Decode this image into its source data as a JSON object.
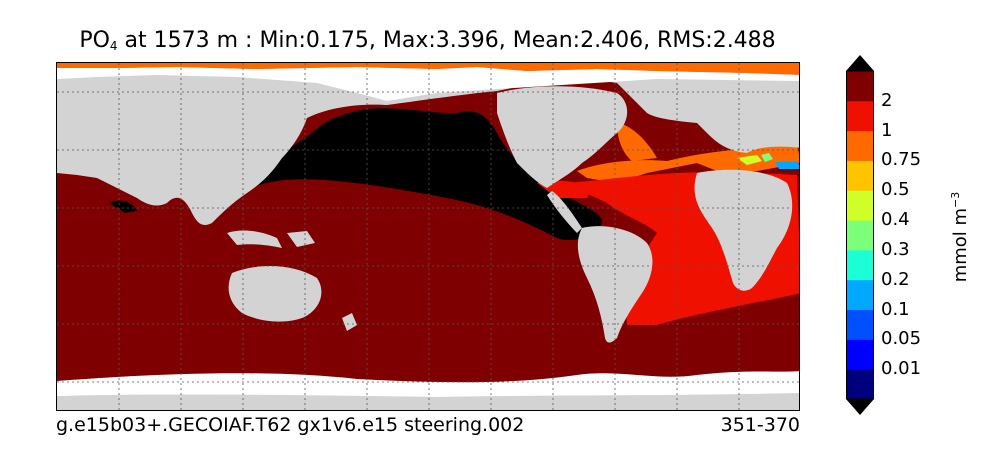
{
  "title": {
    "variable": "PO",
    "subscript": "4",
    "rest": " at 1573 m : Min:0.175, Max:3.396, Mean:2.406, RMS:2.488"
  },
  "footer": {
    "case_name": "g.e15b03+.GECOIAF.T62 gx1v6.e15 steering.002",
    "years": "351-370"
  },
  "colorbar": {
    "units_base": "mmol m",
    "units_exp": "−3",
    "labels": [
      "2",
      "1",
      "0.75",
      "0.5",
      "0.4",
      "0.3",
      "0.2",
      "0.1",
      "0.05",
      "0.01"
    ],
    "colors": [
      "#00007f",
      "#0000ff",
      "#0050ff",
      "#00a8ff",
      "#1affd5",
      "#7cff79",
      "#cfff27",
      "#ffc400",
      "#ff6a00",
      "#f01000",
      "#7f0000"
    ],
    "land_color": "#d3d3d3",
    "missing_color": "#ffffff",
    "low_value_color": "#000000"
  }
}
